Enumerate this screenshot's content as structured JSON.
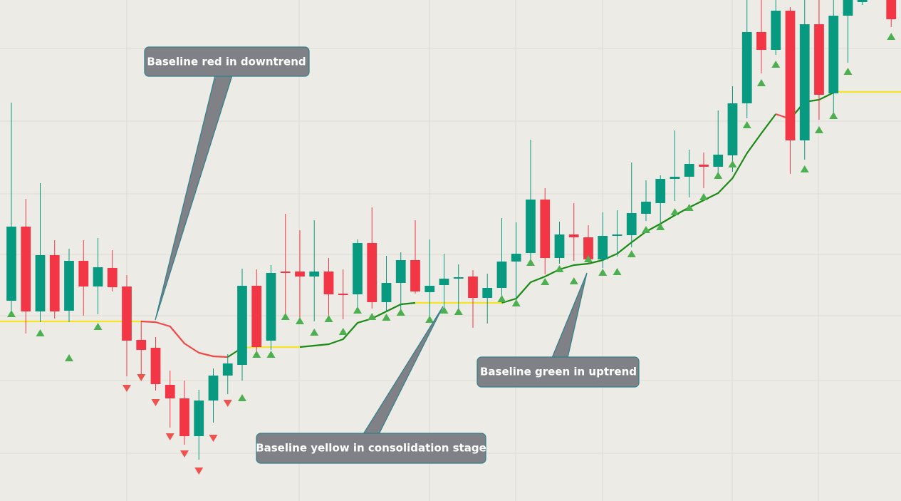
{
  "chart_data": {
    "type": "candlestick",
    "xlim": [
      -0.79,
      61.68
    ],
    "ylim": [
      0,
      703
    ],
    "up_color": "#089981",
    "down_color": "#f23645",
    "candles": {
      "x": [
        0,
        1,
        2,
        3,
        4,
        5,
        6,
        7,
        8,
        9,
        10,
        11,
        12,
        13,
        14,
        15,
        16,
        17,
        18,
        19,
        20,
        21,
        22,
        23,
        24,
        25,
        26,
        27,
        28,
        29,
        30,
        31,
        32,
        33,
        34,
        35,
        36,
        37,
        38,
        39,
        40,
        41,
        42,
        43,
        44,
        45,
        46,
        47,
        48,
        49,
        50,
        51,
        52,
        53,
        54,
        55,
        56,
        57,
        58,
        59,
        61
      ],
      "open": [
        281,
        385,
        266,
        345,
        267,
        337,
        301,
        327,
        301,
        226,
        215,
        163,
        144,
        91,
        141,
        176,
        191,
        302,
        225,
        322,
        322,
        315,
        322,
        291,
        290,
        362,
        279,
        306,
        338,
        293,
        303,
        312,
        315,
        285,
        299,
        336,
        348,
        423,
        341,
        374,
        370,
        339,
        372,
        373,
        403,
        418,
        452,
        455,
        472,
        469,
        485,
        558,
        658,
        633,
        688,
        506,
        669,
        572,
        681,
        700,
        710
      ],
      "high": [
        559,
        424,
        446,
        366,
        354,
        366,
        369,
        352,
        317,
        253,
        230,
        183,
        169,
        156,
        186,
        206,
        326,
        325,
        331,
        403,
        380,
        394,
        341,
        325,
        367,
        412,
        344,
        349,
        394,
        367,
        347,
        332,
        324,
        319,
        397,
        391,
        507,
        439,
        392,
        418,
        387,
        405,
        408,
        475,
        450,
        457,
        520,
        493,
        489,
        548,
        582,
        710,
        710,
        710,
        693,
        710,
        710,
        710,
        720,
        710,
        710
      ],
      "low": [
        266,
        235,
        251,
        256,
        251,
        260,
        262,
        294,
        175,
        173,
        155,
        103,
        79,
        58,
        110,
        150,
        169,
        205,
        212,
        263,
        250,
        252,
        260,
        255,
        272,
        270,
        267,
        262,
        291,
        256,
        272,
        266,
        243,
        249,
        283,
        281,
        337,
        318,
        333,
        337,
        333,
        327,
        343,
        356,
        393,
        390,
        421,
        426,
        439,
        454,
        462,
        537,
        600,
        626,
        459,
        479,
        535,
        545,
        615,
        696,
        665
      ],
      "close": [
        385,
        266,
        345,
        266,
        337,
        301,
        328,
        300,
        225,
        212,
        164,
        144,
        91,
        141,
        176,
        193,
        302,
        216,
        320,
        320,
        315,
        322,
        290,
        289,
        362,
        279,
        306,
        338,
        294,
        302,
        312,
        314,
        285,
        299,
        336,
        347,
        423,
        341,
        374,
        370,
        339,
        372,
        374,
        404,
        420,
        452,
        455,
        473,
        469,
        486,
        558,
        658,
        633,
        688,
        506,
        669,
        570,
        681,
        710,
        710,
        676
      ]
    },
    "signals": {
      "buy": {
        "color": "#4caf50",
        "x": [
          0,
          2,
          4,
          6,
          16,
          17,
          18,
          19,
          20,
          21,
          22,
          23,
          24,
          25,
          26,
          27,
          29,
          30,
          31,
          34,
          35,
          36,
          37,
          38,
          39,
          40,
          41,
          42,
          43,
          44,
          45,
          46,
          47,
          48,
          49,
          50,
          51,
          52,
          53,
          55,
          56,
          57,
          58,
          61
        ],
        "values": [
          263,
          236,
          201,
          245,
          145,
          206,
          206,
          259,
          253,
          237,
          256,
          238,
          268,
          259,
          258,
          265,
          255,
          268,
          266,
          284,
          278,
          335,
          308,
          326,
          309,
          340,
          321,
          322,
          347,
          381,
          385,
          406,
          412,
          427,
          457,
          473,
          528,
          587,
          613,
          466,
          521,
          541,
          603,
          652
        ]
      },
      "sell": {
        "color": "#ef5350",
        "x": [
          8,
          9,
          10,
          11,
          12,
          13,
          14,
          15
        ],
        "values": [
          158,
          173,
          138,
          90,
          66,
          42,
          88,
          137
        ]
      }
    },
    "baseline": [
      {
        "color": "#f5e52a",
        "x": [
          -0.79,
          9
        ],
        "values": [
          252,
          252
        ]
      },
      {
        "color": "#f04848",
        "x": [
          9,
          10,
          11,
          12,
          13,
          14,
          15
        ],
        "values": [
          252,
          251,
          245,
          221,
          208,
          203,
          202
        ]
      },
      {
        "color": "#1a8a14",
        "x": [
          15,
          16
        ],
        "values": [
          202,
          215
        ]
      },
      {
        "color": "#f5e52a",
        "x": [
          16,
          17,
          18,
          19,
          20
        ],
        "values": [
          215,
          216,
          216,
          216,
          216
        ]
      },
      {
        "color": "#1a8a14",
        "x": [
          20,
          21,
          22,
          23,
          24,
          25,
          26,
          27,
          28
        ],
        "values": [
          216,
          218,
          220,
          227,
          250,
          256,
          266,
          276,
          278
        ]
      },
      {
        "color": "#f5e52a",
        "x": [
          28,
          34
        ],
        "values": [
          278,
          278
        ]
      },
      {
        "color": "#1a8a14",
        "x": [
          34,
          35,
          36,
          37,
          38,
          39,
          40,
          41,
          42,
          43,
          44,
          45,
          46,
          47,
          48,
          49,
          50,
          51,
          52,
          53
        ],
        "values": [
          278,
          284,
          307,
          315,
          325,
          331,
          333,
          338,
          347,
          363,
          378,
          389,
          401,
          412,
          422,
          432,
          453,
          488,
          516,
          543
        ]
      },
      {
        "color": "#f04848",
        "x": [
          53,
          54
        ],
        "values": [
          543,
          536
        ]
      },
      {
        "color": "#1a8a14",
        "x": [
          54,
          55,
          56,
          57
        ],
        "values": [
          536,
          560,
          563,
          573
        ]
      },
      {
        "color": "#f5e52a",
        "x": [
          57,
          61.68
        ],
        "values": [
          574,
          574
        ]
      }
    ],
    "annotations": [
      "Baseline red in downtrend",
      "Baseline yellow in consolidation stage",
      "Baseline green in uptrend"
    ]
  }
}
